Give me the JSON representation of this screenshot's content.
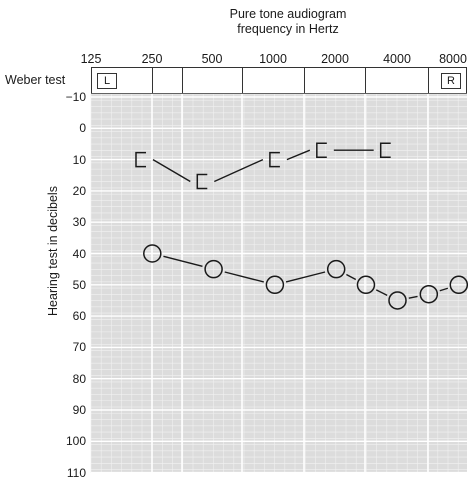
{
  "chart_data": {
    "type": "line",
    "title": "Pure tone audiogram",
    "subtitle": "frequency in Hertz",
    "ylabel": "Hearing test in decibels",
    "weber_label": "Weber test",
    "weber_left": "L",
    "weber_right": "R",
    "x_ticks": [
      "125",
      "250",
      "500",
      "1000",
      "2000",
      "4000",
      "8000"
    ],
    "x_values": [
      125,
      250,
      500,
      1000,
      2000,
      4000,
      8000
    ],
    "y_ticks": [
      -10,
      0,
      10,
      20,
      30,
      40,
      50,
      60,
      70,
      80,
      90,
      100,
      110
    ],
    "ylim": [
      -10,
      110
    ],
    "y_inverted": true,
    "x_scale": "log",
    "grid": true,
    "series": [
      {
        "marker": "bracket",
        "points": [
          {
            "x": 220,
            "y": 10
          },
          {
            "x": 440,
            "y": 17
          },
          {
            "x": 1000,
            "y": 10
          },
          {
            "x": 1700,
            "y": 7
          },
          {
            "x": 3500,
            "y": 7
          }
        ]
      },
      {
        "marker": "circle",
        "points": [
          {
            "x": 250,
            "y": 40
          },
          {
            "x": 500,
            "y": 45
          },
          {
            "x": 1000,
            "y": 50
          },
          {
            "x": 2000,
            "y": 45
          },
          {
            "x": 2800,
            "y": 50
          },
          {
            "x": 4000,
            "y": 55
          },
          {
            "x": 5700,
            "y": 53
          },
          {
            "x": 8000,
            "y": 50
          }
        ]
      }
    ]
  }
}
